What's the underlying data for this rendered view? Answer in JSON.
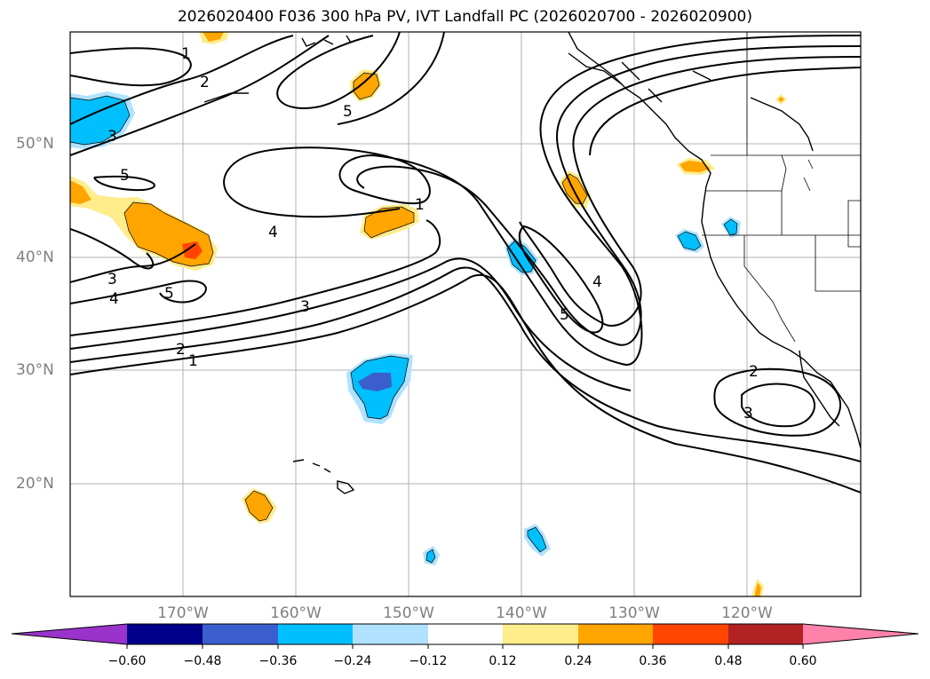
{
  "title": "2026020400 F036 300 hPa PV, IVT Landfall PC (2026020700 - 2026020900)",
  "axes": {
    "lat_labels": [
      "50°N",
      "40°N",
      "30°N",
      "20°N"
    ],
    "lon_labels": [
      "170°W",
      "160°W",
      "150°W",
      "140°W",
      "130°W",
      "120°W"
    ]
  },
  "contour_labels": [
    {
      "id": "c1a",
      "text": "1"
    },
    {
      "id": "c2a",
      "text": "2"
    },
    {
      "id": "c5a",
      "text": "5"
    },
    {
      "id": "c3a",
      "text": "3"
    },
    {
      "id": "c5b",
      "text": "5"
    },
    {
      "id": "c4a",
      "text": "4"
    },
    {
      "id": "c1b",
      "text": "1"
    },
    {
      "id": "c3b",
      "text": "3"
    },
    {
      "id": "c4b",
      "text": "4"
    },
    {
      "id": "c5c",
      "text": "5"
    },
    {
      "id": "c3c",
      "text": "3"
    },
    {
      "id": "c2b",
      "text": "2"
    },
    {
      "id": "c1c",
      "text": "1"
    },
    {
      "id": "c4c",
      "text": "4"
    },
    {
      "id": "c5d",
      "text": "5"
    },
    {
      "id": "c2c",
      "text": "2"
    },
    {
      "id": "c3d",
      "text": "3"
    }
  ],
  "colorbar": {
    "colors": [
      "#9933cc",
      "#00008b",
      "#3a5fcd",
      "#00bfff",
      "#b0e2ff",
      "#ffffff",
      "#ffec8b",
      "#ffa500",
      "#ff4500",
      "#b22222",
      "#ff82ab"
    ],
    "ticks": [
      "−0.60",
      "−0.48",
      "−0.36",
      "−0.24",
      "−0.12",
      "0.12",
      "0.24",
      "0.36",
      "0.48",
      "0.60"
    ]
  }
}
